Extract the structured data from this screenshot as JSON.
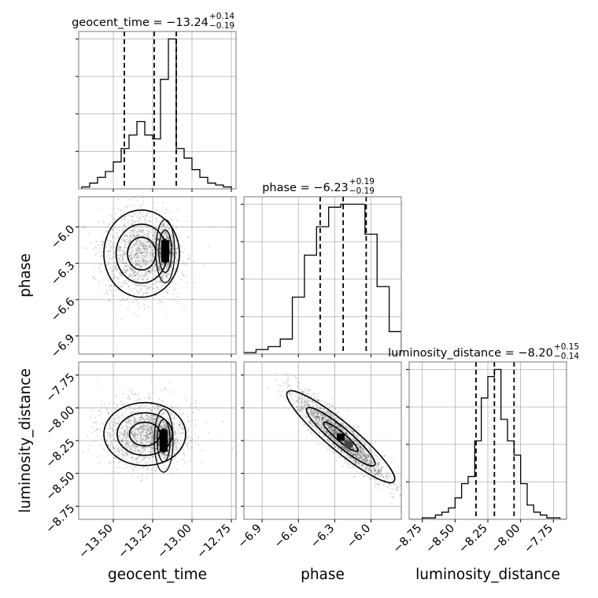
{
  "chart_data": {
    "type": "corner",
    "grid": true,
    "parameters": [
      {
        "name": "geocent_time",
        "xlim": [
          -13.72,
          -12.72
        ],
        "xticks": [
          -13.5,
          -13.25,
          -13.0,
          -12.75
        ],
        "xtick_labels": [
          "−13.50",
          "−13.25",
          "−13.00",
          "−12.75"
        ],
        "quantiles": [
          -13.43,
          -13.24,
          -13.1
        ],
        "title": {
          "prefix": "geocent_time = −13.24",
          "plus": "+0.14",
          "minus": "−0.19"
        },
        "axis_label": "geocent_time",
        "histogram": {
          "bins": [
            -13.7,
            -13.65,
            -13.6,
            -13.55,
            -13.5,
            -13.45,
            -13.4,
            -13.35,
            -13.3,
            -13.25,
            -13.2,
            -13.15,
            -13.1,
            -13.05,
            -13.0,
            -12.95,
            -12.9,
            -12.85,
            -12.8,
            -12.75
          ],
          "counts": [
            1,
            3,
            6,
            9,
            14,
            21,
            28,
            35,
            28,
            26,
            57,
            78,
            21,
            16,
            10,
            6,
            3,
            2,
            1
          ]
        }
      },
      {
        "name": "phase",
        "xlim": [
          -7.05,
          -5.75
        ],
        "xticks": [
          -6.9,
          -6.6,
          -6.3,
          -6.0
        ],
        "xtick_labels": [
          "−6.9",
          "−6.6",
          "−6.3",
          "−6.0"
        ],
        "yticks": [
          -6.9,
          -6.6,
          -6.3,
          -6.0
        ],
        "ytick_labels": [
          "−6.9",
          "−6.6",
          "−6.3",
          "−6.0"
        ],
        "quantiles": [
          -6.42,
          -6.23,
          -6.04
        ],
        "title": {
          "prefix": "phase = −6.23",
          "plus": "+0.19",
          "minus": "−0.19"
        },
        "axis_label": "phase",
        "histogram": {
          "bins": [
            -7.05,
            -6.95,
            -6.85,
            -6.75,
            -6.65,
            -6.55,
            -6.45,
            -6.35,
            -6.25,
            -6.15,
            -6.05,
            -5.95,
            -5.85,
            -5.75
          ],
          "counts": [
            1,
            3,
            5,
            10,
            38,
            66,
            85,
            98,
            100,
            100,
            80,
            45,
            15
          ]
        }
      },
      {
        "name": "luminosity_distance",
        "xlim": [
          -8.85,
          -7.65
        ],
        "xticks": [
          -8.75,
          -8.5,
          -8.25,
          -8.0,
          -7.75
        ],
        "xtick_labels": [
          "−8.75",
          "−8.50",
          "−8.25",
          "−8.00",
          "−7.75"
        ],
        "yticks": [
          -8.75,
          -8.5,
          -8.25,
          -8.0,
          -7.75
        ],
        "ytick_labels": [
          "−8.75",
          "−8.50",
          "−8.25",
          "−8.00",
          "−7.75"
        ],
        "quantiles": [
          -8.34,
          -8.2,
          -8.05
        ],
        "title": {
          "prefix": "luminosity_distance = −8.20",
          "plus": "+0.15",
          "minus": "−0.14"
        },
        "axis_label": "luminosity_distance",
        "histogram": {
          "bins": [
            -8.85,
            -8.8,
            -8.75,
            -8.7,
            -8.65,
            -8.6,
            -8.55,
            -8.5,
            -8.45,
            -8.4,
            -8.35,
            -8.3,
            -8.25,
            -8.2,
            -8.15,
            -8.1,
            -8.05,
            -8.0,
            -7.95,
            -7.9,
            -7.85,
            -7.8,
            -7.75,
            -7.7,
            -7.65
          ],
          "counts": [
            0,
            0,
            1,
            1,
            3,
            5,
            8,
            15,
            25,
            30,
            55,
            85,
            100,
            105,
            70,
            55,
            45,
            25,
            10,
            5,
            3,
            1,
            1,
            0
          ]
        }
      }
    ],
    "posterior_samples": {
      "geocent_phase": {
        "center": [
          -13.32,
          -6.22
        ],
        "spread": [
          0.12,
          0.18
        ],
        "mode": [
          -13.17,
          -6.2
        ],
        "mode_spread": [
          0.03,
          0.08
        ]
      },
      "geocent_distance": {
        "center": [
          -13.3,
          -8.2
        ],
        "spread": [
          0.13,
          0.12
        ],
        "mode": [
          -13.18,
          -8.25
        ],
        "mode_spread": [
          0.03,
          0.06
        ]
      },
      "phase_distance": {
        "center": [
          -6.25,
          -8.22
        ],
        "spread": [
          0.18,
          0.16
        ],
        "correlation": -0.9
      }
    }
  }
}
